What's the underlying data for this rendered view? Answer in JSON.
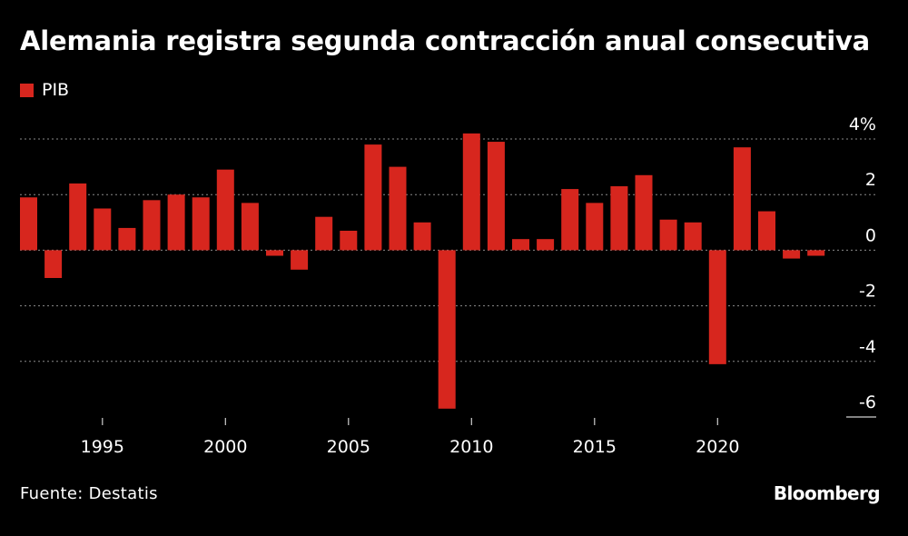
{
  "title": "Alemania registra segunda contracción anual consecutiva",
  "legend": {
    "label": "PIB",
    "color": "#d7261e"
  },
  "source": "Fuente: Destatis",
  "logo": "Bloomberg",
  "chart_data": {
    "type": "bar",
    "title": "Alemania registra segunda contracción anual consecutiva",
    "xlabel": "",
    "ylabel": "",
    "series": [
      {
        "name": "PIB",
        "color": "#d7261e",
        "x": [
          1992,
          1993,
          1994,
          1995,
          1996,
          1997,
          1998,
          1999,
          2000,
          2001,
          2002,
          2003,
          2004,
          2005,
          2006,
          2007,
          2008,
          2009,
          2010,
          2011,
          2012,
          2013,
          2014,
          2015,
          2016,
          2017,
          2018,
          2019,
          2020,
          2021,
          2022,
          2023,
          2024
        ],
        "values": [
          1.9,
          -1.0,
          2.4,
          1.5,
          0.8,
          1.8,
          2.0,
          1.9,
          2.9,
          1.7,
          -0.2,
          -0.7,
          1.2,
          0.7,
          3.8,
          3.0,
          1.0,
          -5.7,
          4.2,
          3.9,
          0.4,
          0.4,
          2.2,
          1.7,
          2.3,
          2.7,
          1.1,
          1.0,
          -4.1,
          3.7,
          1.4,
          -0.3,
          -0.2
        ]
      }
    ],
    "x_ticks": [
      1995,
      2000,
      2005,
      2010,
      2015,
      2020
    ],
    "x_tick_labels": [
      "1995",
      "2000",
      "2005",
      "2010",
      "2015",
      "2020"
    ],
    "ylim": [
      -6,
      4
    ],
    "y_ticks": [
      4,
      2,
      0,
      -2,
      -4,
      -6
    ],
    "y_tick_labels": [
      "4%",
      "2",
      "0",
      "-2",
      "-4",
      "-6"
    ],
    "grid": true,
    "gridline_color": "#8a8a8a",
    "axis_color": "#cfcfcf",
    "legend_position": "top-left"
  }
}
